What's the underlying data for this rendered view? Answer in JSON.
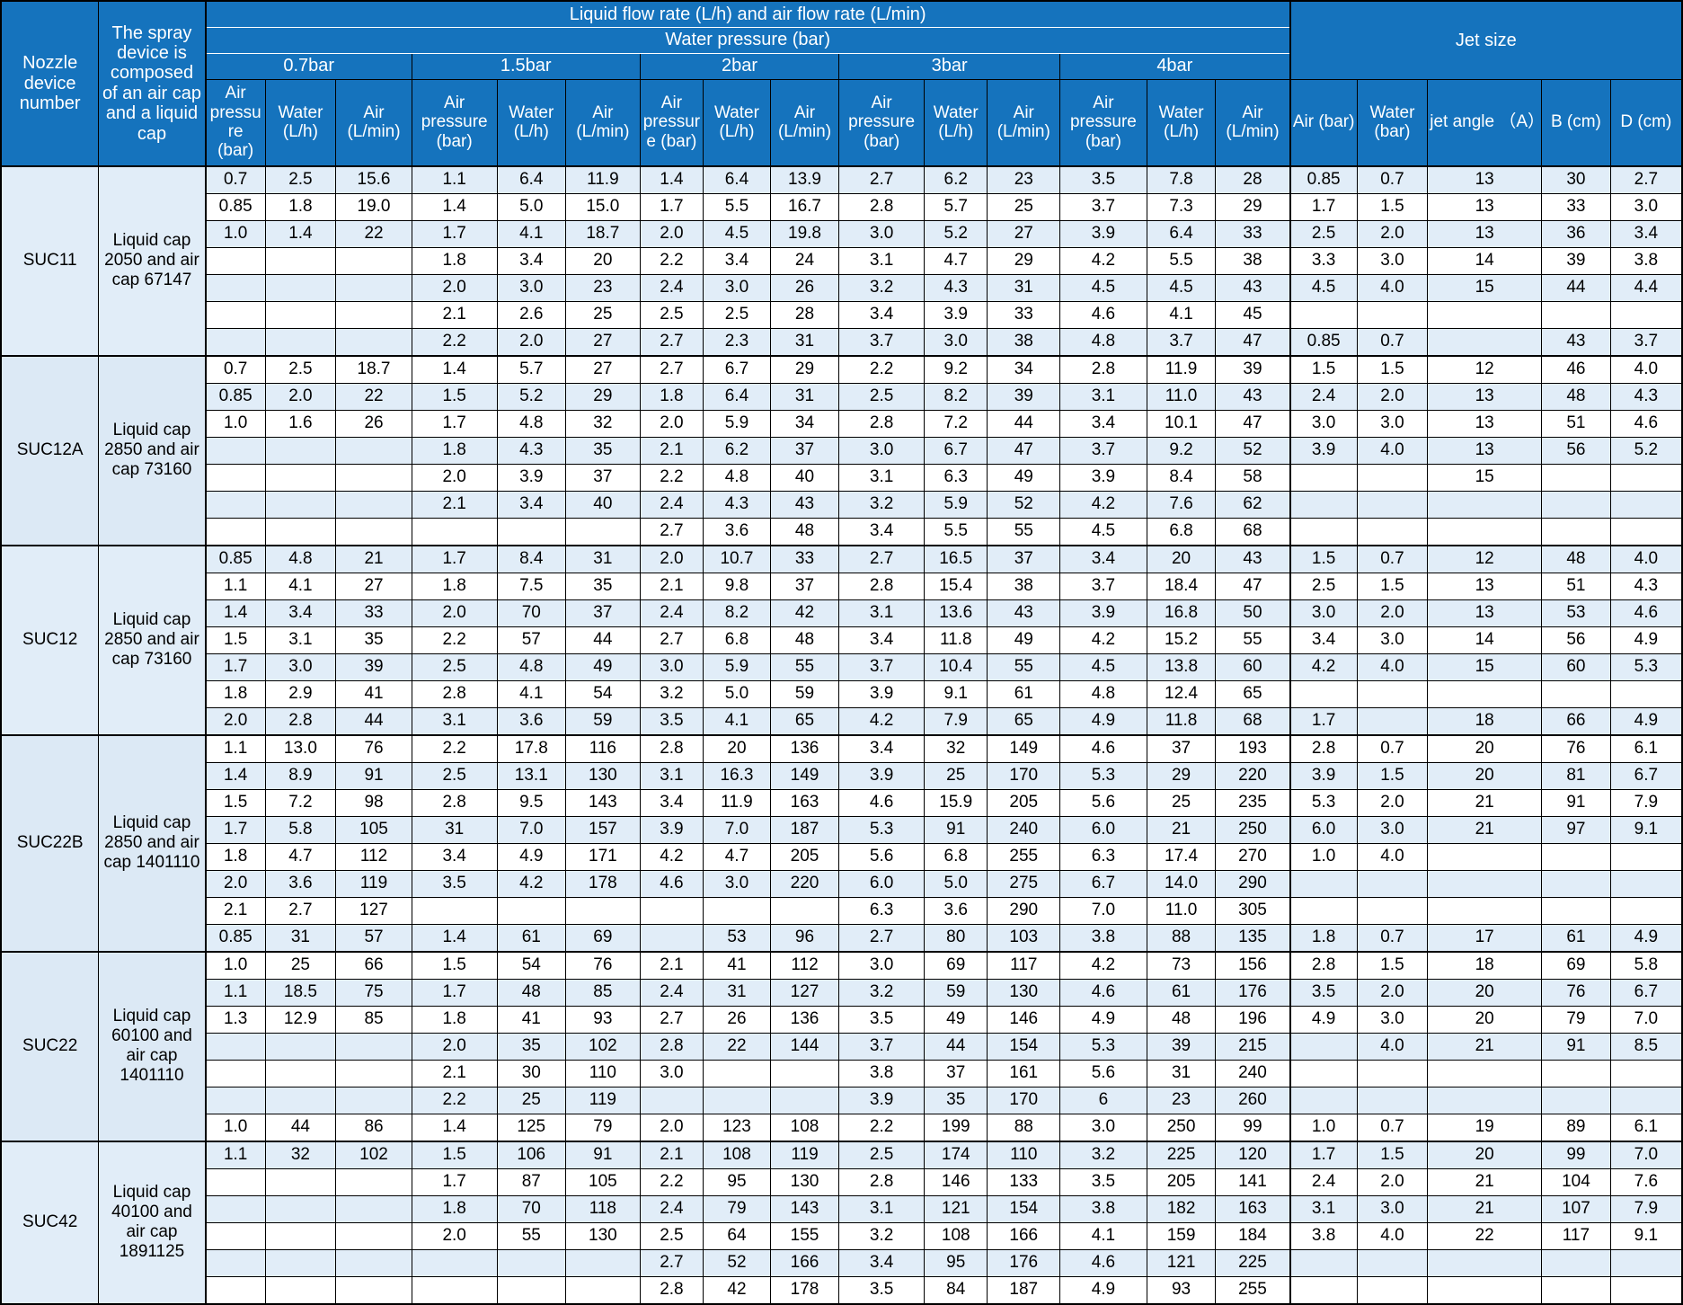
{
  "header": {
    "nozzle_col": "Nozzle device number",
    "device_col": "The spray device is composed of an air cap and a liquid cap",
    "flow_title": "Liquid flow rate (L/h) and air flow rate (L/min)",
    "water_pressure_title": "Water pressure (bar)",
    "pressure_groups": [
      "0.7bar",
      "1.5bar",
      "2bar",
      "3bar",
      "4bar"
    ],
    "sub_headers": {
      "air_pressure": "Air pressure (bar)",
      "water": "Water (L/h)",
      "air": "Air (L/min)"
    },
    "jet_title": "Jet size",
    "jet_headers": [
      "Air (bar)",
      "Water (bar)",
      "jet angle （A）",
      "B (cm)",
      "D (cm)"
    ]
  },
  "colors": {
    "header_bg": "#1573bd",
    "stripe_row_bg": "#e1edf8",
    "label_cell_bg": "#dce9f5",
    "border": "#000000"
  },
  "groups": [
    {
      "nozzle": "SUC11",
      "device": "Liquid cap 2050 and air cap 67147",
      "rows": [
        [
          "0.7",
          "2.5",
          "15.6",
          "1.1",
          "6.4",
          "11.9",
          "1.4",
          "6.4",
          "13.9",
          "2.7",
          "6.2",
          "23",
          "3.5",
          "7.8",
          "28",
          "0.85",
          "0.7",
          "13",
          "30",
          "2.7"
        ],
        [
          "0.85",
          "1.8",
          "19.0",
          "1.4",
          "5.0",
          "15.0",
          "1.7",
          "5.5",
          "16.7",
          "2.8",
          "5.7",
          "25",
          "3.7",
          "7.3",
          "29",
          "1.7",
          "1.5",
          "13",
          "33",
          "3.0"
        ],
        [
          "1.0",
          "1.4",
          "22",
          "1.7",
          "4.1",
          "18.7",
          "2.0",
          "4.5",
          "19.8",
          "3.0",
          "5.2",
          "27",
          "3.9",
          "6.4",
          "33",
          "2.5",
          "2.0",
          "13",
          "36",
          "3.4"
        ],
        [
          "",
          "",
          "",
          "1.8",
          "3.4",
          "20",
          "2.2",
          "3.4",
          "24",
          "3.1",
          "4.7",
          "29",
          "4.2",
          "5.5",
          "38",
          "3.3",
          "3.0",
          "14",
          "39",
          "3.8"
        ],
        [
          "",
          "",
          "",
          "2.0",
          "3.0",
          "23",
          "2.4",
          "3.0",
          "26",
          "3.2",
          "4.3",
          "31",
          "4.5",
          "4.5",
          "43",
          "4.5",
          "4.0",
          "15",
          "44",
          "4.4"
        ],
        [
          "",
          "",
          "",
          "2.1",
          "2.6",
          "25",
          "2.5",
          "2.5",
          "28",
          "3.4",
          "3.9",
          "33",
          "4.6",
          "4.1",
          "45",
          "",
          "",
          "",
          "",
          ""
        ],
        [
          "",
          "",
          "",
          "2.2",
          "2.0",
          "27",
          "2.7",
          "2.3",
          "31",
          "3.7",
          "3.0",
          "38",
          "4.8",
          "3.7",
          "47",
          "0.85",
          "0.7",
          "",
          "43",
          "3.7"
        ]
      ]
    },
    {
      "nozzle": "SUC12A",
      "device": "Liquid cap 2850 and air cap 73160",
      "rows": [
        [
          "0.7",
          "2.5",
          "18.7",
          "1.4",
          "5.7",
          "27",
          "2.7",
          "6.7",
          "29",
          "2.2",
          "9.2",
          "34",
          "2.8",
          "11.9",
          "39",
          "1.5",
          "1.5",
          "12",
          "46",
          "4.0"
        ],
        [
          "0.85",
          "2.0",
          "22",
          "1.5",
          "5.2",
          "29",
          "1.8",
          "6.4",
          "31",
          "2.5",
          "8.2",
          "39",
          "3.1",
          "11.0",
          "43",
          "2.4",
          "2.0",
          "13",
          "48",
          "4.3"
        ],
        [
          "1.0",
          "1.6",
          "26",
          "1.7",
          "4.8",
          "32",
          "2.0",
          "5.9",
          "34",
          "2.8",
          "7.2",
          "44",
          "3.4",
          "10.1",
          "47",
          "3.0",
          "3.0",
          "13",
          "51",
          "4.6"
        ],
        [
          "",
          "",
          "",
          "1.8",
          "4.3",
          "35",
          "2.1",
          "6.2",
          "37",
          "3.0",
          "6.7",
          "47",
          "3.7",
          "9.2",
          "52",
          "3.9",
          "4.0",
          "13",
          "56",
          "5.2"
        ],
        [
          "",
          "",
          "",
          "2.0",
          "3.9",
          "37",
          "2.2",
          "4.8",
          "40",
          "3.1",
          "6.3",
          "49",
          "3.9",
          "8.4",
          "58",
          "",
          "",
          "15",
          "",
          ""
        ],
        [
          "",
          "",
          "",
          "2.1",
          "3.4",
          "40",
          "2.4",
          "4.3",
          "43",
          "3.2",
          "5.9",
          "52",
          "4.2",
          "7.6",
          "62",
          "",
          "",
          "",
          "",
          ""
        ],
        [
          "",
          "",
          "",
          "",
          "",
          "",
          "2.7",
          "3.6",
          "48",
          "3.4",
          "5.5",
          "55",
          "4.5",
          "6.8",
          "68",
          "",
          "",
          "",
          "",
          ""
        ]
      ]
    },
    {
      "nozzle": "SUC12",
      "device": "Liquid cap 2850 and air cap 73160",
      "rows": [
        [
          "0.85",
          "4.8",
          "21",
          "1.7",
          "8.4",
          "31",
          "2.0",
          "10.7",
          "33",
          "2.7",
          "16.5",
          "37",
          "3.4",
          "20",
          "43",
          "1.5",
          "0.7",
          "12",
          "48",
          "4.0"
        ],
        [
          "1.1",
          "4.1",
          "27",
          "1.8",
          "7.5",
          "35",
          "2.1",
          "9.8",
          "37",
          "2.8",
          "15.4",
          "38",
          "3.7",
          "18.4",
          "47",
          "2.5",
          "1.5",
          "13",
          "51",
          "4.3"
        ],
        [
          "1.4",
          "3.4",
          "33",
          "2.0",
          "70",
          "37",
          "2.4",
          "8.2",
          "42",
          "3.1",
          "13.6",
          "43",
          "3.9",
          "16.8",
          "50",
          "3.0",
          "2.0",
          "13",
          "53",
          "4.6"
        ],
        [
          "1.5",
          "3.1",
          "35",
          "2.2",
          "57",
          "44",
          "2.7",
          "6.8",
          "48",
          "3.4",
          "11.8",
          "49",
          "4.2",
          "15.2",
          "55",
          "3.4",
          "3.0",
          "14",
          "56",
          "4.9"
        ],
        [
          "1.7",
          "3.0",
          "39",
          "2.5",
          "4.8",
          "49",
          "3.0",
          "5.9",
          "55",
          "3.7",
          "10.4",
          "55",
          "4.5",
          "13.8",
          "60",
          "4.2",
          "4.0",
          "15",
          "60",
          "5.3"
        ],
        [
          "1.8",
          "2.9",
          "41",
          "2.8",
          "4.1",
          "54",
          "3.2",
          "5.0",
          "59",
          "3.9",
          "9.1",
          "61",
          "4.8",
          "12.4",
          "65",
          "",
          "",
          "",
          "",
          ""
        ],
        [
          "2.0",
          "2.8",
          "44",
          "3.1",
          "3.6",
          "59",
          "3.5",
          "4.1",
          "65",
          "4.2",
          "7.9",
          "65",
          "4.9",
          "11.8",
          "68",
          "1.7",
          "",
          "18",
          "66",
          "4.9"
        ]
      ]
    },
    {
      "nozzle": "SUC22B",
      "device": "Liquid cap 2850 and air cap 1401110",
      "rows": [
        [
          "1.1",
          "13.0",
          "76",
          "2.2",
          "17.8",
          "116",
          "2.8",
          "20",
          "136",
          "3.4",
          "32",
          "149",
          "4.6",
          "37",
          "193",
          "2.8",
          "0.7",
          "20",
          "76",
          "6.1"
        ],
        [
          "1.4",
          "8.9",
          "91",
          "2.5",
          "13.1",
          "130",
          "3.1",
          "16.3",
          "149",
          "3.9",
          "25",
          "170",
          "5.3",
          "29",
          "220",
          "3.9",
          "1.5",
          "20",
          "81",
          "6.7"
        ],
        [
          "1.5",
          "7.2",
          "98",
          "2.8",
          "9.5",
          "143",
          "3.4",
          "11.9",
          "163",
          "4.6",
          "15.9",
          "205",
          "5.6",
          "25",
          "235",
          "5.3",
          "2.0",
          "21",
          "91",
          "7.9"
        ],
        [
          "1.7",
          "5.8",
          "105",
          "31",
          "7.0",
          "157",
          "3.9",
          "7.0",
          "187",
          "5.3",
          "91",
          "240",
          "6.0",
          "21",
          "250",
          "6.0",
          "3.0",
          "21",
          "97",
          "9.1"
        ],
        [
          "1.8",
          "4.7",
          "112",
          "3.4",
          "4.9",
          "171",
          "4.2",
          "4.7",
          "205",
          "5.6",
          "6.8",
          "255",
          "6.3",
          "17.4",
          "270",
          "1.0",
          "4.0",
          "",
          "",
          ""
        ],
        [
          "2.0",
          "3.6",
          "119",
          "3.5",
          "4.2",
          "178",
          "4.6",
          "3.0",
          "220",
          "6.0",
          "5.0",
          "275",
          "6.7",
          "14.0",
          "290",
          "",
          "",
          "",
          "",
          ""
        ],
        [
          "2.1",
          "2.7",
          "127",
          "",
          "",
          "",
          "",
          "",
          "",
          "6.3",
          "3.6",
          "290",
          "7.0",
          "11.0",
          "305",
          "",
          "",
          "",
          "",
          ""
        ],
        [
          "0.85",
          "31",
          "57",
          "1.4",
          "61",
          "69",
          "",
          "53",
          "96",
          "2.7",
          "80",
          "103",
          "3.8",
          "88",
          "135",
          "1.8",
          "0.7",
          "17",
          "61",
          "4.9"
        ]
      ]
    },
    {
      "nozzle": "SUC22",
      "device": "Liquid cap 60100 and air cap 1401110",
      "rows": [
        [
          "1.0",
          "25",
          "66",
          "1.5",
          "54",
          "76",
          "2.1",
          "41",
          "112",
          "3.0",
          "69",
          "117",
          "4.2",
          "73",
          "156",
          "2.8",
          "1.5",
          "18",
          "69",
          "5.8"
        ],
        [
          "1.1",
          "18.5",
          "75",
          "1.7",
          "48",
          "85",
          "2.4",
          "31",
          "127",
          "3.2",
          "59",
          "130",
          "4.6",
          "61",
          "176",
          "3.5",
          "2.0",
          "20",
          "76",
          "6.7"
        ],
        [
          "1.3",
          "12.9",
          "85",
          "1.8",
          "41",
          "93",
          "2.7",
          "26",
          "136",
          "3.5",
          "49",
          "146",
          "4.9",
          "48",
          "196",
          "4.9",
          "3.0",
          "20",
          "79",
          "7.0"
        ],
        [
          "",
          "",
          "",
          "2.0",
          "35",
          "102",
          "2.8",
          "22",
          "144",
          "3.7",
          "44",
          "154",
          "5.3",
          "39",
          "215",
          "",
          "4.0",
          "21",
          "91",
          "8.5"
        ],
        [
          "",
          "",
          "",
          "2.1",
          "30",
          "110",
          "3.0",
          "",
          "",
          "3.8",
          "37",
          "161",
          "5.6",
          "31",
          "240",
          "",
          "",
          "",
          "",
          ""
        ],
        [
          "",
          "",
          "",
          "2.2",
          "25",
          "119",
          "",
          "",
          "",
          "3.9",
          "35",
          "170",
          "6",
          "23",
          "260",
          "",
          "",
          "",
          "",
          ""
        ],
        [
          "1.0",
          "44",
          "86",
          "1.4",
          "125",
          "79",
          "2.0",
          "123",
          "108",
          "2.2",
          "199",
          "88",
          "3.0",
          "250",
          "99",
          "1.0",
          "0.7",
          "19",
          "89",
          "6.1"
        ]
      ]
    },
    {
      "nozzle": "SUC42",
      "device": "Liquid cap 40100 and air cap 1891125",
      "rows": [
        [
          "1.1",
          "32",
          "102",
          "1.5",
          "106",
          "91",
          "2.1",
          "108",
          "119",
          "2.5",
          "174",
          "110",
          "3.2",
          "225",
          "120",
          "1.7",
          "1.5",
          "20",
          "99",
          "7.0"
        ],
        [
          "",
          "",
          "",
          "1.7",
          "87",
          "105",
          "2.2",
          "95",
          "130",
          "2.8",
          "146",
          "133",
          "3.5",
          "205",
          "141",
          "2.4",
          "2.0",
          "21",
          "104",
          "7.6"
        ],
        [
          "",
          "",
          "",
          "1.8",
          "70",
          "118",
          "2.4",
          "79",
          "143",
          "3.1",
          "121",
          "154",
          "3.8",
          "182",
          "163",
          "3.1",
          "3.0",
          "21",
          "107",
          "7.9"
        ],
        [
          "",
          "",
          "",
          "2.0",
          "55",
          "130",
          "2.5",
          "64",
          "155",
          "3.2",
          "108",
          "166",
          "4.1",
          "159",
          "184",
          "3.8",
          "4.0",
          "22",
          "117",
          "9.1"
        ],
        [
          "",
          "",
          "",
          "",
          "",
          "",
          "2.7",
          "52",
          "166",
          "3.4",
          "95",
          "176",
          "4.6",
          "121",
          "225",
          "",
          "",
          "",
          "",
          ""
        ],
        [
          "",
          "",
          "",
          "",
          "",
          "",
          "2.8",
          "42",
          "178",
          "3.5",
          "84",
          "187",
          "4.9",
          "93",
          "255",
          "",
          "",
          "",
          "",
          ""
        ]
      ]
    }
  ]
}
